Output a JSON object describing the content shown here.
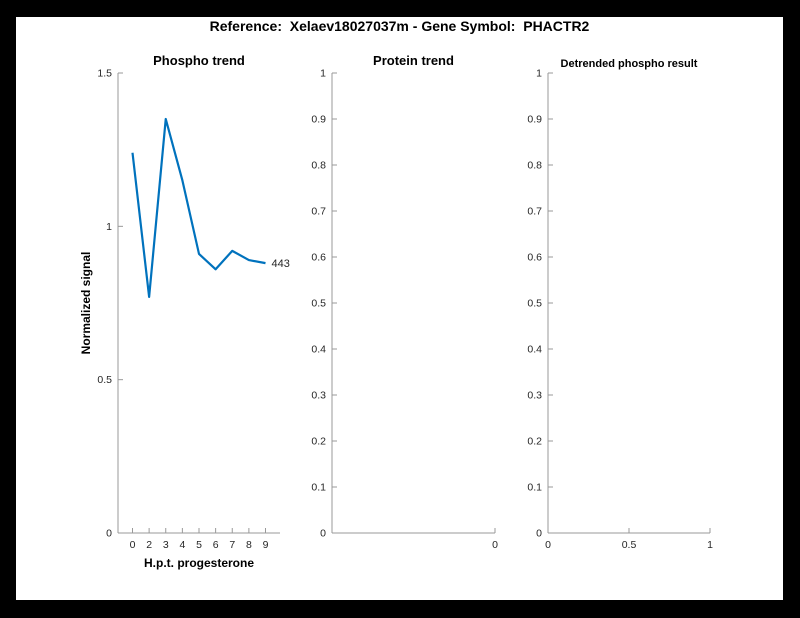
{
  "window": {
    "background": "#000000",
    "canvas_background": "#ffffff"
  },
  "header": {
    "title": "Reference:  Xelaev18027037m - Gene Symbol:  PHACTR2"
  },
  "colors": {
    "line": "#0072BD",
    "spine": "#999999",
    "tick_label": "#262626",
    "title_text": "#000000"
  },
  "chart_data": [
    {
      "id": "phospho-trend",
      "type": "line",
      "title": "Phospho trend",
      "xlabel": "H.p.t. progesterone",
      "ylabel": "Normalized signal",
      "x_tick_labels": [
        "0",
        "2",
        "3",
        "4",
        "5",
        "6",
        "7",
        "8",
        "9"
      ],
      "values": [
        1.24,
        0.77,
        1.35,
        1.15,
        0.91,
        0.86,
        0.92,
        0.89,
        0.88
      ],
      "ylim": [
        0,
        1.5
      ],
      "y_ticks": [
        {
          "v": 0,
          "label": "0"
        },
        {
          "v": 0.5,
          "label": "0.5"
        },
        {
          "v": 1,
          "label": "1"
        },
        {
          "v": 1.5,
          "label": "1.5"
        }
      ],
      "end_annotation": "443",
      "line_color": "#0072BD",
      "grid": false,
      "legend": "none"
    },
    {
      "id": "protein-trend",
      "type": "line",
      "title": "Protein trend",
      "values": [],
      "ylim": [
        0,
        1
      ],
      "y_ticks": [
        {
          "v": 0,
          "label": "0"
        },
        {
          "v": 0.1,
          "label": "0.1"
        },
        {
          "v": 0.2,
          "label": "0.2"
        },
        {
          "v": 0.3,
          "label": "0.3"
        },
        {
          "v": 0.4,
          "label": "0.4"
        },
        {
          "v": 0.5,
          "label": "0.5"
        },
        {
          "v": 0.6,
          "label": "0.6"
        },
        {
          "v": 0.7,
          "label": "0.7"
        },
        {
          "v": 0.8,
          "label": "0.8"
        },
        {
          "v": 0.9,
          "label": "0.9"
        },
        {
          "v": 1,
          "label": "1"
        }
      ],
      "xlim": [
        -1,
        0
      ],
      "x_ticks": [
        {
          "v": 0,
          "label": "0"
        }
      ],
      "grid": false,
      "legend": "none"
    },
    {
      "id": "detrended-phospho",
      "type": "line",
      "title": "Detrended phospho result",
      "values": [],
      "ylim": [
        0,
        1
      ],
      "y_ticks": [
        {
          "v": 0,
          "label": "0"
        },
        {
          "v": 0.1,
          "label": "0.1"
        },
        {
          "v": 0.2,
          "label": "0.2"
        },
        {
          "v": 0.3,
          "label": "0.3"
        },
        {
          "v": 0.4,
          "label": "0.4"
        },
        {
          "v": 0.5,
          "label": "0.5"
        },
        {
          "v": 0.6,
          "label": "0.6"
        },
        {
          "v": 0.7,
          "label": "0.7"
        },
        {
          "v": 0.8,
          "label": "0.8"
        },
        {
          "v": 0.9,
          "label": "0.9"
        },
        {
          "v": 1,
          "label": "1"
        }
      ],
      "xlim": [
        0,
        1
      ],
      "x_ticks": [
        {
          "v": 0,
          "label": "0"
        },
        {
          "v": 0.5,
          "label": "0.5"
        },
        {
          "v": 1,
          "label": "1"
        }
      ],
      "grid": false,
      "legend": "none"
    }
  ]
}
